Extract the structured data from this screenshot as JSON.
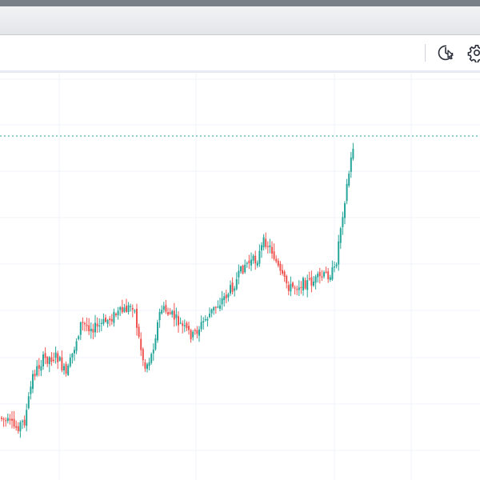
{
  "toolbar": {
    "icons": [
      "quick-replay-icon",
      "settings-gear-icon"
    ]
  },
  "colors": {
    "up": "#26a69a",
    "down": "#ef5350",
    "grid": "#f0f3fa",
    "last_price_line": "#26a69a"
  },
  "chart_data": {
    "type": "candlestick",
    "grid": true,
    "last_price_line": true,
    "candles": []
  }
}
